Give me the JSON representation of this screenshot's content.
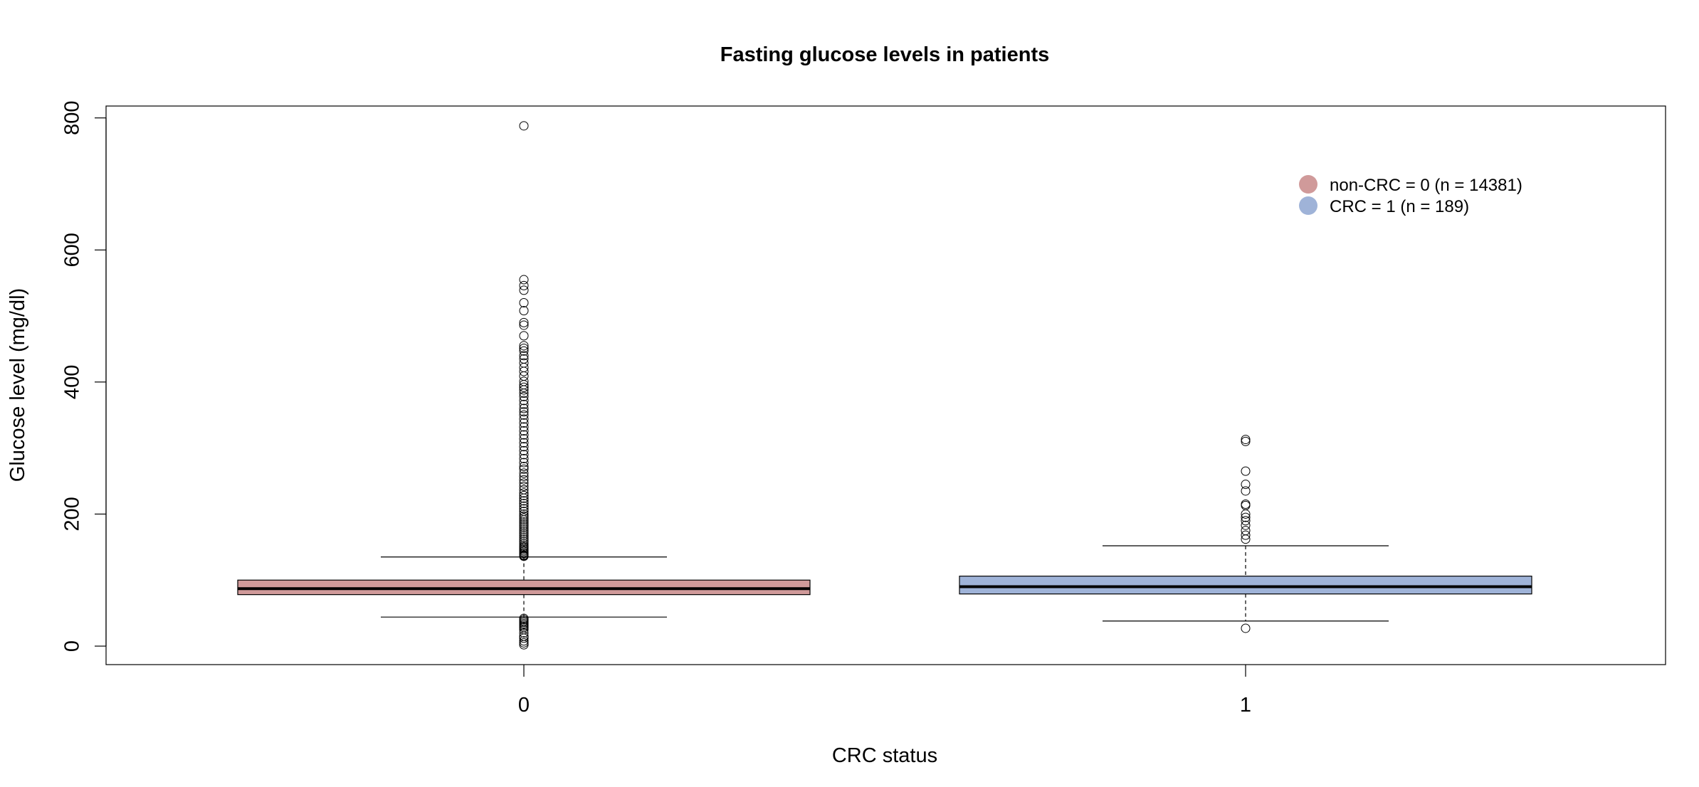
{
  "chart_data": {
    "type": "boxplot",
    "title": "Fasting glucose levels in patients",
    "xlabel": "CRC status",
    "ylabel": "Glucose level (mg/dl)",
    "categories": [
      "0",
      "1"
    ],
    "ylim": [
      -28,
      818
    ],
    "yticks": [
      0,
      200,
      400,
      600,
      800
    ],
    "ytick_labels": [
      "0",
      "200",
      "400",
      "600",
      "800"
    ],
    "grid": false,
    "legend": {
      "position": "top-right",
      "entries": [
        {
          "label": "non-CRC = 0 (n = 14381)",
          "color": "#d09a9a"
        },
        {
          "label": "CRC = 1 (n = 189)",
          "color": "#9fb3d8"
        }
      ]
    },
    "series": [
      {
        "category": "0",
        "fill": "#d09a9a",
        "whisker_low": 44,
        "q1": 78,
        "median": 87,
        "q3": 100,
        "whisker_high": 135,
        "outliers": [
          788,
          555,
          546,
          539,
          520,
          508,
          490,
          486,
          470,
          455,
          451,
          447,
          440,
          435,
          429,
          422,
          416,
          409,
          401,
          396,
          392,
          388,
          383,
          378,
          372,
          366,
          360,
          355,
          350,
          344,
          338,
          332,
          326,
          320,
          314,
          308,
          302,
          296,
          290,
          284,
          278,
          272,
          268,
          262,
          257,
          252,
          247,
          242,
          237,
          232,
          228,
          224,
          220,
          216,
          212,
          208,
          204,
          200,
          197,
          194,
          191,
          188,
          185,
          182,
          179,
          176,
          173,
          170,
          167,
          164,
          161,
          158,
          155,
          152,
          150,
          148,
          146,
          144,
          142,
          140,
          138,
          137,
          136,
          42,
          40,
          38,
          36,
          34,
          32,
          30,
          28,
          25,
          20,
          15,
          12,
          8,
          5,
          2
        ]
      },
      {
        "category": "1",
        "fill": "#9fb3d8",
        "whisker_low": 38,
        "q1": 79,
        "median": 90,
        "q3": 106,
        "whisker_high": 152,
        "outliers": [
          313,
          310,
          265,
          245,
          235,
          215,
          213,
          200,
          195,
          190,
          183,
          175,
          168,
          162,
          27
        ]
      }
    ]
  }
}
